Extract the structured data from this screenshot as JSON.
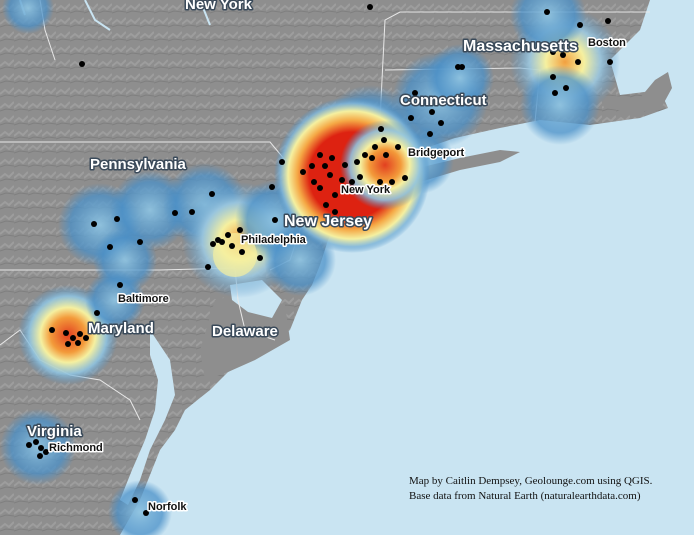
{
  "map": {
    "states": [
      {
        "id": "new-york",
        "label": "New York"
      },
      {
        "id": "massachusetts",
        "label": "Massachusetts"
      },
      {
        "id": "connecticut",
        "label": "Connecticut"
      },
      {
        "id": "pennsylvania",
        "label": "Pennsylvania"
      },
      {
        "id": "new-jersey",
        "label": "New Jersey"
      },
      {
        "id": "maryland",
        "label": "Maryland"
      },
      {
        "id": "delaware",
        "label": "Delaware"
      },
      {
        "id": "virginia",
        "label": "Virginia"
      }
    ],
    "cities": [
      {
        "id": "boston",
        "label": "Boston"
      },
      {
        "id": "bridgeport",
        "label": "Bridgeport"
      },
      {
        "id": "new-york-city",
        "label": "New York"
      },
      {
        "id": "philadelphia",
        "label": "Philadelphia"
      },
      {
        "id": "baltimore",
        "label": "Baltimore"
      },
      {
        "id": "richmond",
        "label": "Richmond"
      },
      {
        "id": "norfolk",
        "label": "Norfolk"
      }
    ],
    "heatmap_colors": {
      "low": "#4a90c8",
      "mid": "#f5f0a0",
      "high": "#f2a040",
      "peak": "#dd2211"
    },
    "colors": {
      "land": "#8c8c8c",
      "water": "#c9e4f2",
      "points": "#000000"
    }
  },
  "credit": {
    "line1": "Map by Caitlin Dempsey, Geolounge.com using QGIS.",
    "line2": "Base data from Natural Earth (naturalearthdata.com)"
  }
}
